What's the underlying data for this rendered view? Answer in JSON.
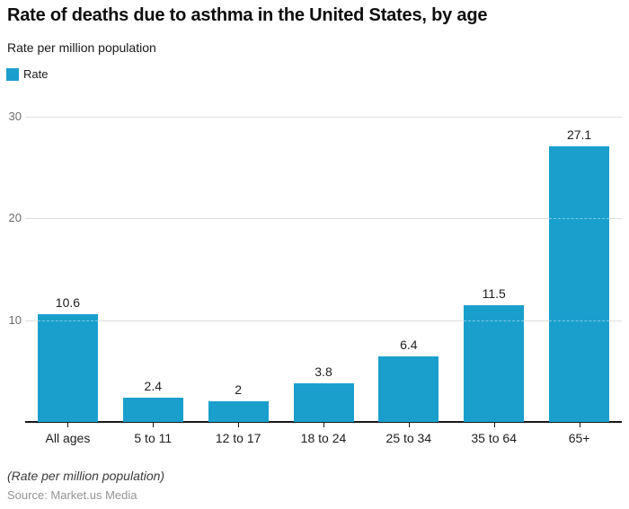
{
  "header": {
    "title": "Rate of deaths due to asthma in the United States, by age",
    "subtitle": "Rate per million population"
  },
  "legend": {
    "label": "Rate",
    "color": "#1a9fcd"
  },
  "chart_data": {
    "type": "bar",
    "title": "Rate of deaths due to asthma in the United States, by age",
    "subtitle": "Rate per million population",
    "categories": [
      "All ages",
      "5 to 11",
      "12 to 17",
      "18 to 24",
      "25 to 34",
      "35 to 64",
      "65+"
    ],
    "series": [
      {
        "name": "Rate",
        "values": [
          10.6,
          2.4,
          2,
          3.8,
          6.4,
          11.5,
          27.1
        ]
      }
    ],
    "value_labels": [
      "10.6",
      "2.4",
      "2",
      "3.8",
      "6.4",
      "11.5",
      "27.1"
    ],
    "xlabel": "",
    "ylabel": "Rate per million population",
    "yticks": [
      10,
      20,
      30
    ],
    "ylim": [
      0,
      30
    ],
    "grid": "horizontal",
    "legend_position": "top-left",
    "bar_color": "#1a9fcd",
    "gridline_color": "#dedede",
    "axis_color": "#18181a"
  },
  "footer": {
    "note": "(Rate per million population)",
    "source": "Source: Market.us Media"
  }
}
